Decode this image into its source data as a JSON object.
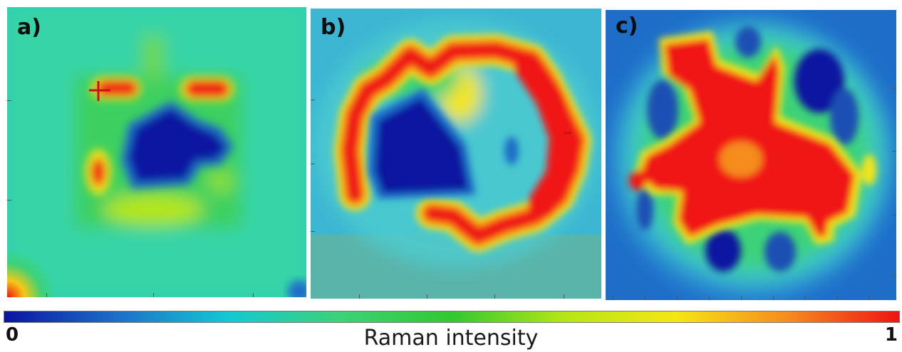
{
  "panels": [
    {
      "label": "a)"
    },
    {
      "label": "b)"
    },
    {
      "label": "c)"
    }
  ],
  "colorbar": {
    "min_label": "0",
    "max_label": "1",
    "title": "Raman intensity",
    "colors": [
      "#0a14a0",
      "#1e6ec8",
      "#14c8d2",
      "#3cd278",
      "#32c832",
      "#b4e614",
      "#f5e614",
      "#f58c1e",
      "#f01414"
    ]
  }
}
